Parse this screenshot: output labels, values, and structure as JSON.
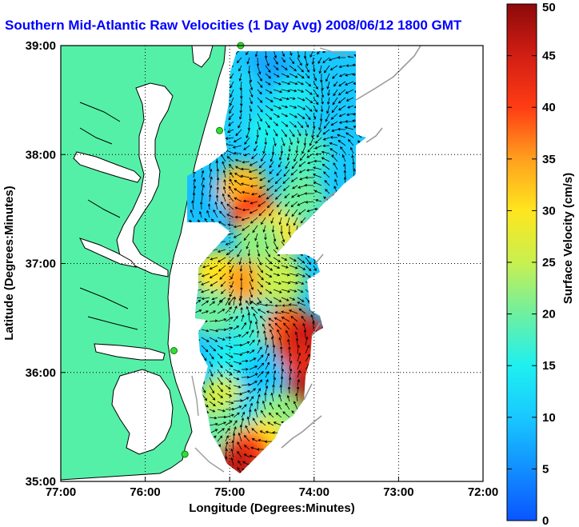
{
  "title": "Southern Mid-Atlantic Raw Velocities (1 Day Avg) 2008/06/12 1800 GMT",
  "xlabel": "Longitude (Degrees:Minutes)",
  "ylabel": "Latitude (Degrees:Minutes)",
  "x_ticks": [
    "77:00",
    "76:00",
    "75:00",
    "74:00",
    "73:00",
    "72:00"
  ],
  "y_ticks": [
    "39:00",
    "38:00",
    "37:00",
    "36:00",
    "35:00"
  ],
  "colorbar": {
    "label": "Surface Velocity (cm/s)",
    "ticks": [
      "0",
      "5",
      "10",
      "15",
      "20",
      "25",
      "30",
      "35",
      "40",
      "45",
      "50"
    ],
    "range": [
      0,
      50
    ]
  },
  "colors": {
    "land": "#55f0a8",
    "title": "#0000ff",
    "ocean": "#ffffff"
  },
  "chart_data": {
    "type": "heatmap",
    "title": "Southern Mid-Atlantic Raw Velocities (1 Day Avg) 2008/06/12 1800 GMT",
    "xlabel": "Longitude (Degrees:Minutes)",
    "ylabel": "Latitude (Degrees:Minutes)",
    "xlim": [
      -77,
      -72
    ],
    "ylim": [
      35,
      39
    ],
    "grid": true,
    "units": "cm/s",
    "stations": [
      {
        "lon": -74.87,
        "lat": 39.0
      },
      {
        "lon": -75.12,
        "lat": 38.22
      },
      {
        "lon": -75.66,
        "lat": 36.2
      },
      {
        "lon": -75.53,
        "lat": 35.25
      }
    ],
    "speed_zones": [
      {
        "lon": -74.55,
        "lat": 38.75,
        "speed": 7
      },
      {
        "lon": -74.9,
        "lat": 38.6,
        "speed": 12
      },
      {
        "lon": -74.25,
        "lat": 38.5,
        "speed": 14
      },
      {
        "lon": -75.0,
        "lat": 38.35,
        "speed": 11
      },
      {
        "lon": -74.5,
        "lat": 38.2,
        "speed": 15
      },
      {
        "lon": -74.1,
        "lat": 38.0,
        "speed": 18
      },
      {
        "lon": -75.35,
        "lat": 37.6,
        "speed": 9
      },
      {
        "lon": -74.85,
        "lat": 37.7,
        "speed": 33
      },
      {
        "lon": -74.72,
        "lat": 37.45,
        "speed": 40
      },
      {
        "lon": -74.4,
        "lat": 37.3,
        "speed": 30
      },
      {
        "lon": -74.15,
        "lat": 37.6,
        "speed": 20
      },
      {
        "lon": -74.65,
        "lat": 37.2,
        "speed": 22
      },
      {
        "lon": -75.15,
        "lat": 36.9,
        "speed": 30
      },
      {
        "lon": -74.8,
        "lat": 36.8,
        "speed": 35
      },
      {
        "lon": -74.4,
        "lat": 36.85,
        "speed": 25
      },
      {
        "lon": -75.2,
        "lat": 36.55,
        "speed": 20
      },
      {
        "lon": -74.7,
        "lat": 36.45,
        "speed": 17
      },
      {
        "lon": -74.3,
        "lat": 36.4,
        "speed": 38
      },
      {
        "lon": -74.1,
        "lat": 36.3,
        "speed": 45
      },
      {
        "lon": -74.2,
        "lat": 36.05,
        "speed": 43
      },
      {
        "lon": -74.2,
        "lat": 35.75,
        "speed": 48
      },
      {
        "lon": -74.95,
        "lat": 36.1,
        "speed": 15
      },
      {
        "lon": -74.6,
        "lat": 35.95,
        "speed": 10
      },
      {
        "lon": -75.1,
        "lat": 35.75,
        "speed": 26
      },
      {
        "lon": -74.7,
        "lat": 35.6,
        "speed": 12
      },
      {
        "lon": -74.4,
        "lat": 35.6,
        "speed": 22
      },
      {
        "lon": -75.05,
        "lat": 35.45,
        "speed": 20
      },
      {
        "lon": -74.6,
        "lat": 35.35,
        "speed": 30
      },
      {
        "lon": -74.8,
        "lat": 35.25,
        "speed": 40
      },
      {
        "lon": -74.95,
        "lat": 35.1,
        "speed": 46
      }
    ]
  }
}
